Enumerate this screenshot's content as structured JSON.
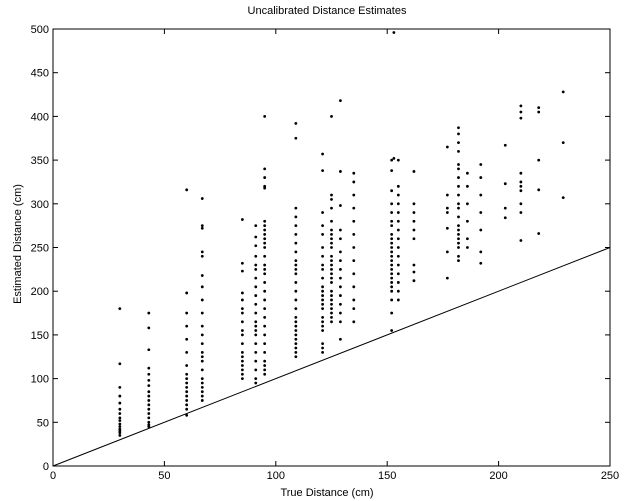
{
  "chart_data": {
    "type": "scatter",
    "title": "Uncalibrated Distance Estimates",
    "xlabel": "True Distance (cm)",
    "ylabel": "Estimated Distance (cm)",
    "xlim": [
      0,
      250
    ],
    "ylim": [
      0,
      500
    ],
    "xticks": [
      "0",
      "50",
      "100",
      "150",
      "200",
      "250"
    ],
    "yticks": [
      "0",
      "50",
      "100",
      "150",
      "200",
      "250",
      "300",
      "350",
      "400",
      "450",
      "500"
    ],
    "grid": false,
    "legend": "none",
    "colors": {
      "marker": "#000000",
      "reference_line": "#000000",
      "axes": "#000000"
    },
    "reference_line": {
      "x": [
        0,
        250
      ],
      "y": [
        0,
        250
      ]
    },
    "points": {
      "x": [
        30,
        30,
        30,
        30,
        30,
        30,
        30,
        30,
        30,
        30,
        30,
        30,
        30,
        30,
        30,
        43,
        43,
        43,
        43,
        43,
        43,
        43,
        43,
        43,
        43,
        43,
        43,
        43,
        43,
        43,
        43,
        43,
        60,
        60,
        60,
        60,
        60,
        60,
        60,
        60,
        60,
        60,
        60,
        60,
        60,
        60,
        60,
        60,
        60,
        67,
        67,
        67,
        67,
        67,
        67,
        67,
        67,
        67,
        67,
        67,
        67,
        67,
        67,
        67,
        67,
        67,
        67,
        67,
        67,
        67,
        67,
        85,
        85,
        85,
        85,
        85,
        85,
        85,
        85,
        85,
        85,
        85,
        85,
        85,
        85,
        85,
        85,
        85,
        85,
        91,
        91,
        91,
        91,
        91,
        91,
        91,
        91,
        91,
        91,
        91,
        91,
        91,
        91,
        91,
        91,
        91,
        91,
        91,
        91,
        91,
        95,
        95,
        95,
        95,
        95,
        95,
        95,
        95,
        95,
        95,
        95,
        95,
        95,
        95,
        95,
        95,
        95,
        95,
        95,
        95,
        95,
        95,
        95,
        95,
        95,
        95,
        95,
        95,
        95,
        109,
        109,
        109,
        109,
        109,
        109,
        109,
        109,
        109,
        109,
        109,
        109,
        109,
        109,
        109,
        109,
        109,
        109,
        109,
        109,
        109,
        109,
        109,
        109,
        109,
        109,
        121,
        121,
        121,
        121,
        121,
        121,
        121,
        121,
        121,
        121,
        121,
        121,
        121,
        121,
        121,
        121,
        121,
        121,
        121,
        121,
        121,
        121,
        121,
        125,
        125,
        125,
        125,
        125,
        125,
        125,
        125,
        125,
        125,
        125,
        125,
        125,
        125,
        125,
        125,
        125,
        125,
        125,
        125,
        125,
        125,
        125,
        125,
        125,
        129,
        129,
        129,
        129,
        129,
        129,
        129,
        129,
        129,
        129,
        129,
        129,
        129,
        129,
        129,
        135,
        135,
        135,
        135,
        135,
        135,
        135,
        135,
        135,
        135,
        135,
        135,
        135,
        152,
        152,
        152,
        152,
        152,
        152,
        152,
        152,
        152,
        152,
        152,
        152,
        152,
        152,
        152,
        152,
        152,
        152,
        152,
        152,
        152,
        152,
        152,
        152,
        153,
        153,
        155,
        155,
        155,
        155,
        155,
        155,
        155,
        155,
        155,
        155,
        155,
        155,
        155,
        155,
        155,
        162,
        162,
        162,
        162,
        162,
        162,
        162,
        162,
        162,
        177,
        177,
        177,
        177,
        177,
        177,
        177,
        182,
        182,
        182,
        182,
        182,
        182,
        182,
        182,
        182,
        182,
        182,
        182,
        182,
        182,
        182,
        182,
        182,
        182,
        182,
        182,
        186,
        186,
        186,
        186,
        186,
        186,
        192,
        192,
        192,
        192,
        192,
        192,
        192,
        203,
        203,
        203,
        203,
        210,
        210,
        210,
        210,
        210,
        210,
        210,
        210,
        210,
        210,
        218,
        218,
        218,
        218,
        218,
        229,
        229,
        229
      ],
      "y": [
        180,
        117,
        90,
        80,
        72,
        65,
        60,
        55,
        52,
        48,
        45,
        42,
        40,
        38,
        35,
        175,
        158,
        133,
        112,
        105,
        98,
        92,
        85,
        80,
        75,
        70,
        65,
        60,
        55,
        50,
        47,
        45,
        316,
        198,
        175,
        160,
        145,
        130,
        115,
        105,
        100,
        95,
        90,
        85,
        80,
        75,
        70,
        65,
        58,
        306,
        275,
        272,
        245,
        240,
        218,
        205,
        190,
        175,
        160,
        150,
        140,
        130,
        125,
        120,
        110,
        100,
        95,
        90,
        85,
        80,
        75,
        282,
        232,
        223,
        198,
        190,
        180,
        175,
        165,
        155,
        150,
        140,
        130,
        125,
        120,
        115,
        110,
        105,
        100,
        275,
        262,
        252,
        240,
        230,
        225,
        215,
        205,
        195,
        185,
        175,
        165,
        160,
        155,
        150,
        140,
        130,
        120,
        110,
        100,
        95,
        400,
        340,
        330,
        320,
        318,
        280,
        275,
        270,
        265,
        260,
        255,
        250,
        240,
        230,
        225,
        220,
        210,
        200,
        190,
        180,
        170,
        160,
        150,
        140,
        130,
        120,
        115,
        110,
        105,
        392,
        375,
        295,
        285,
        275,
        265,
        255,
        245,
        235,
        230,
        225,
        220,
        210,
        200,
        190,
        180,
        170,
        165,
        160,
        155,
        150,
        145,
        140,
        135,
        130,
        125,
        357,
        338,
        290,
        275,
        265,
        250,
        240,
        230,
        225,
        215,
        205,
        200,
        195,
        190,
        185,
        180,
        170,
        165,
        160,
        155,
        140,
        135,
        130,
        400,
        310,
        305,
        295,
        280,
        270,
        265,
        260,
        255,
        250,
        240,
        235,
        230,
        225,
        220,
        215,
        210,
        200,
        195,
        190,
        185,
        180,
        175,
        170,
        165,
        418,
        337,
        298,
        270,
        260,
        245,
        235,
        225,
        215,
        205,
        195,
        185,
        175,
        165,
        145,
        335,
        325,
        310,
        295,
        280,
        265,
        250,
        235,
        220,
        205,
        190,
        180,
        165,
        350,
        338,
        315,
        300,
        290,
        280,
        275,
        265,
        260,
        255,
        250,
        245,
        240,
        235,
        230,
        225,
        220,
        215,
        210,
        205,
        200,
        190,
        175,
        155,
        496,
        352,
        350,
        320,
        310,
        300,
        290,
        280,
        270,
        260,
        250,
        240,
        230,
        220,
        210,
        200,
        190,
        337,
        300,
        290,
        280,
        270,
        260,
        230,
        222,
        212,
        365,
        310,
        295,
        290,
        272,
        245,
        215,
        387,
        380,
        370,
        360,
        345,
        340,
        330,
        320,
        310,
        300,
        295,
        285,
        275,
        270,
        265,
        260,
        255,
        250,
        240,
        235,
        335,
        320,
        300,
        280,
        260,
        250,
        345,
        330,
        310,
        290,
        270,
        245,
        232,
        367,
        323,
        295,
        284,
        412,
        405,
        398,
        335,
        325,
        320,
        315,
        300,
        290,
        258,
        410,
        405,
        350,
        316,
        266,
        428,
        370,
        307
      ]
    }
  }
}
